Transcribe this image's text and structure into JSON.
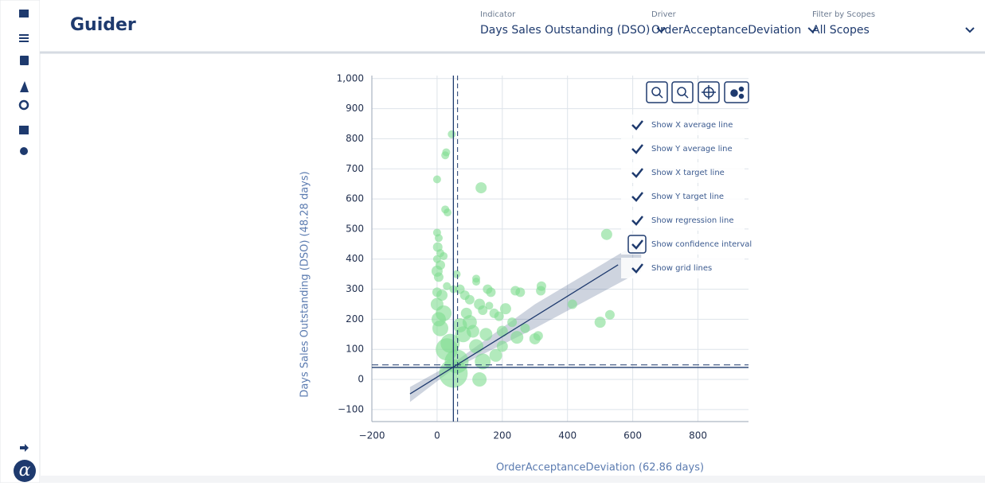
{
  "header": {
    "title": "Guider",
    "logo": "α"
  },
  "filters": [
    {
      "label": "Indicator",
      "value": "Days Sales Outstanding (DSO)"
    },
    {
      "label": "Driver",
      "value": "OrderAcceptanceDeviation"
    },
    {
      "label": "Filter by Scopes",
      "value": "All Scopes"
    }
  ],
  "options": [
    {
      "label": "Show X average line",
      "checked": true
    },
    {
      "label": "Show Y average line",
      "checked": true
    },
    {
      "label": "Show X target line",
      "checked": true
    },
    {
      "label": "Show Y target line",
      "checked": true
    },
    {
      "label": "Show regression line",
      "checked": true
    },
    {
      "label": "Show confidence interval",
      "checked": true
    },
    {
      "label": "Show grid lines",
      "checked": true
    }
  ],
  "chart_data": {
    "type": "scatter",
    "x_label": "OrderAcceptanceDeviation (62.86 days)",
    "y_label": "Days Sales Outstanding (DSO) (48.28 days)",
    "color": "#7fdc8f",
    "grid": true,
    "xlim": [
      -200,
      955
    ],
    "ylim": [
      -140,
      1010
    ],
    "xticks": [
      {
        "value": -200,
        "label": "−200"
      },
      0,
      200,
      400,
      600,
      800
    ],
    "yticks": [
      {
        "value": -100,
        "label": "−100"
      },
      0,
      100,
      200,
      300,
      400,
      500,
      600,
      700,
      800,
      900,
      {
        "value": 1000,
        "label": "1,000"
      }
    ],
    "x_average": 62.86,
    "y_average": 48.28,
    "x_target": 50,
    "y_target": 40,
    "regression": {
      "x": [
        -83,
        555
      ],
      "y": [
        -48,
        381
      ]
    },
    "confidence_band": {
      "x": [
        -83,
        50,
        300,
        626
      ],
      "lower": [
        -75,
        35,
        170,
        360
      ],
      "upper": [
        -25,
        55,
        250,
        460
      ]
    },
    "x": [
      45,
      28,
      25,
      0,
      135,
      25,
      32,
      0,
      5,
      2,
      10,
      0,
      20,
      10,
      0,
      5,
      30,
      50,
      60,
      70,
      85,
      120,
      120,
      155,
      165,
      100,
      130,
      140,
      160,
      175,
      190,
      210,
      240,
      255,
      320,
      318,
      415,
      520,
      530,
      500,
      245,
      300,
      310,
      100,
      80,
      40,
      20,
      0,
      5,
      10,
      30,
      60,
      50,
      140,
      180,
      120,
      150,
      200,
      90,
      130,
      15,
      0,
      110,
      70,
      200,
      230,
      270
    ],
    "values": [
      815,
      755,
      745,
      665,
      637,
      565,
      555,
      488,
      470,
      440,
      420,
      400,
      410,
      380,
      360,
      340,
      310,
      300,
      350,
      300,
      280,
      335,
      325,
      300,
      290,
      265,
      250,
      230,
      245,
      220,
      210,
      235,
      295,
      290,
      310,
      295,
      250,
      482,
      215,
      190,
      140,
      135,
      145,
      190,
      150,
      120,
      220,
      250,
      200,
      170,
      100,
      60,
      20,
      60,
      80,
      110,
      150,
      110,
      220,
      0,
      280,
      290,
      160,
      180,
      160,
      190,
      170
    ],
    "sizes": [
      5,
      5,
      5,
      5,
      7,
      5,
      5,
      5,
      5,
      6,
      5,
      5,
      5,
      6,
      7,
      6,
      5,
      5,
      5,
      6,
      6,
      5,
      5,
      6,
      6,
      6,
      7,
      6,
      5,
      6,
      6,
      7,
      6,
      6,
      6,
      6,
      6,
      7,
      6,
      7,
      8,
      7,
      6,
      9,
      10,
      12,
      10,
      8,
      9,
      10,
      14,
      15,
      18,
      10,
      8,
      9,
      8,
      7,
      7,
      9,
      7,
      6,
      8,
      9,
      7,
      6,
      6
    ]
  }
}
